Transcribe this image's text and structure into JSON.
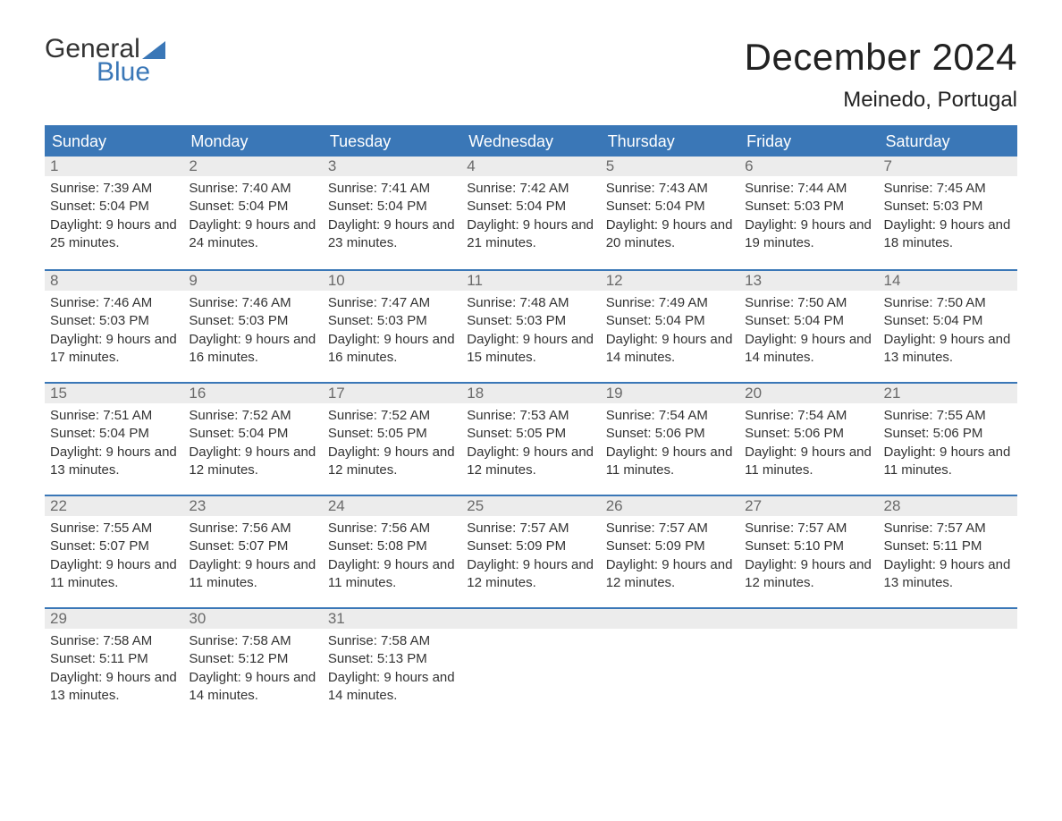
{
  "logo": {
    "word1": "General",
    "word2": "Blue",
    "sail_color": "#3a77b7",
    "text_color": "#333333"
  },
  "header": {
    "month_title": "December 2024",
    "location": "Meinedo, Portugal"
  },
  "colors": {
    "header_bg": "#3a77b7",
    "header_text": "#ffffff",
    "daynum_bg": "#ececec",
    "daynum_text": "#6a6a6a",
    "body_text": "#333333",
    "rule": "#3a77b7",
    "page_bg": "#ffffff"
  },
  "typography": {
    "month_title_fontsize": 42,
    "location_fontsize": 24,
    "weekday_fontsize": 18,
    "daynum_fontsize": 17,
    "body_fontsize": 15,
    "font_family": "Arial"
  },
  "calendar": {
    "weekdays": [
      "Sunday",
      "Monday",
      "Tuesday",
      "Wednesday",
      "Thursday",
      "Friday",
      "Saturday"
    ],
    "labels": {
      "sunrise": "Sunrise:",
      "sunset": "Sunset:",
      "daylight": "Daylight:"
    },
    "weeks": [
      [
        {
          "n": "1",
          "sunrise": "7:39 AM",
          "sunset": "5:04 PM",
          "daylight": "9 hours and 25 minutes."
        },
        {
          "n": "2",
          "sunrise": "7:40 AM",
          "sunset": "5:04 PM",
          "daylight": "9 hours and 24 minutes."
        },
        {
          "n": "3",
          "sunrise": "7:41 AM",
          "sunset": "5:04 PM",
          "daylight": "9 hours and 23 minutes."
        },
        {
          "n": "4",
          "sunrise": "7:42 AM",
          "sunset": "5:04 PM",
          "daylight": "9 hours and 21 minutes."
        },
        {
          "n": "5",
          "sunrise": "7:43 AM",
          "sunset": "5:04 PM",
          "daylight": "9 hours and 20 minutes."
        },
        {
          "n": "6",
          "sunrise": "7:44 AM",
          "sunset": "5:03 PM",
          "daylight": "9 hours and 19 minutes."
        },
        {
          "n": "7",
          "sunrise": "7:45 AM",
          "sunset": "5:03 PM",
          "daylight": "9 hours and 18 minutes."
        }
      ],
      [
        {
          "n": "8",
          "sunrise": "7:46 AM",
          "sunset": "5:03 PM",
          "daylight": "9 hours and 17 minutes."
        },
        {
          "n": "9",
          "sunrise": "7:46 AM",
          "sunset": "5:03 PM",
          "daylight": "9 hours and 16 minutes."
        },
        {
          "n": "10",
          "sunrise": "7:47 AM",
          "sunset": "5:03 PM",
          "daylight": "9 hours and 16 minutes."
        },
        {
          "n": "11",
          "sunrise": "7:48 AM",
          "sunset": "5:03 PM",
          "daylight": "9 hours and 15 minutes."
        },
        {
          "n": "12",
          "sunrise": "7:49 AM",
          "sunset": "5:04 PM",
          "daylight": "9 hours and 14 minutes."
        },
        {
          "n": "13",
          "sunrise": "7:50 AM",
          "sunset": "5:04 PM",
          "daylight": "9 hours and 14 minutes."
        },
        {
          "n": "14",
          "sunrise": "7:50 AM",
          "sunset": "5:04 PM",
          "daylight": "9 hours and 13 minutes."
        }
      ],
      [
        {
          "n": "15",
          "sunrise": "7:51 AM",
          "sunset": "5:04 PM",
          "daylight": "9 hours and 13 minutes."
        },
        {
          "n": "16",
          "sunrise": "7:52 AM",
          "sunset": "5:04 PM",
          "daylight": "9 hours and 12 minutes."
        },
        {
          "n": "17",
          "sunrise": "7:52 AM",
          "sunset": "5:05 PM",
          "daylight": "9 hours and 12 minutes."
        },
        {
          "n": "18",
          "sunrise": "7:53 AM",
          "sunset": "5:05 PM",
          "daylight": "9 hours and 12 minutes."
        },
        {
          "n": "19",
          "sunrise": "7:54 AM",
          "sunset": "5:06 PM",
          "daylight": "9 hours and 11 minutes."
        },
        {
          "n": "20",
          "sunrise": "7:54 AM",
          "sunset": "5:06 PM",
          "daylight": "9 hours and 11 minutes."
        },
        {
          "n": "21",
          "sunrise": "7:55 AM",
          "sunset": "5:06 PM",
          "daylight": "9 hours and 11 minutes."
        }
      ],
      [
        {
          "n": "22",
          "sunrise": "7:55 AM",
          "sunset": "5:07 PM",
          "daylight": "9 hours and 11 minutes."
        },
        {
          "n": "23",
          "sunrise": "7:56 AM",
          "sunset": "5:07 PM",
          "daylight": "9 hours and 11 minutes."
        },
        {
          "n": "24",
          "sunrise": "7:56 AM",
          "sunset": "5:08 PM",
          "daylight": "9 hours and 11 minutes."
        },
        {
          "n": "25",
          "sunrise": "7:57 AM",
          "sunset": "5:09 PM",
          "daylight": "9 hours and 12 minutes."
        },
        {
          "n": "26",
          "sunrise": "7:57 AM",
          "sunset": "5:09 PM",
          "daylight": "9 hours and 12 minutes."
        },
        {
          "n": "27",
          "sunrise": "7:57 AM",
          "sunset": "5:10 PM",
          "daylight": "9 hours and 12 minutes."
        },
        {
          "n": "28",
          "sunrise": "7:57 AM",
          "sunset": "5:11 PM",
          "daylight": "9 hours and 13 minutes."
        }
      ],
      [
        {
          "n": "29",
          "sunrise": "7:58 AM",
          "sunset": "5:11 PM",
          "daylight": "9 hours and 13 minutes."
        },
        {
          "n": "30",
          "sunrise": "7:58 AM",
          "sunset": "5:12 PM",
          "daylight": "9 hours and 14 minutes."
        },
        {
          "n": "31",
          "sunrise": "7:58 AM",
          "sunset": "5:13 PM",
          "daylight": "9 hours and 14 minutes."
        },
        {
          "empty": true
        },
        {
          "empty": true
        },
        {
          "empty": true
        },
        {
          "empty": true
        }
      ]
    ]
  }
}
